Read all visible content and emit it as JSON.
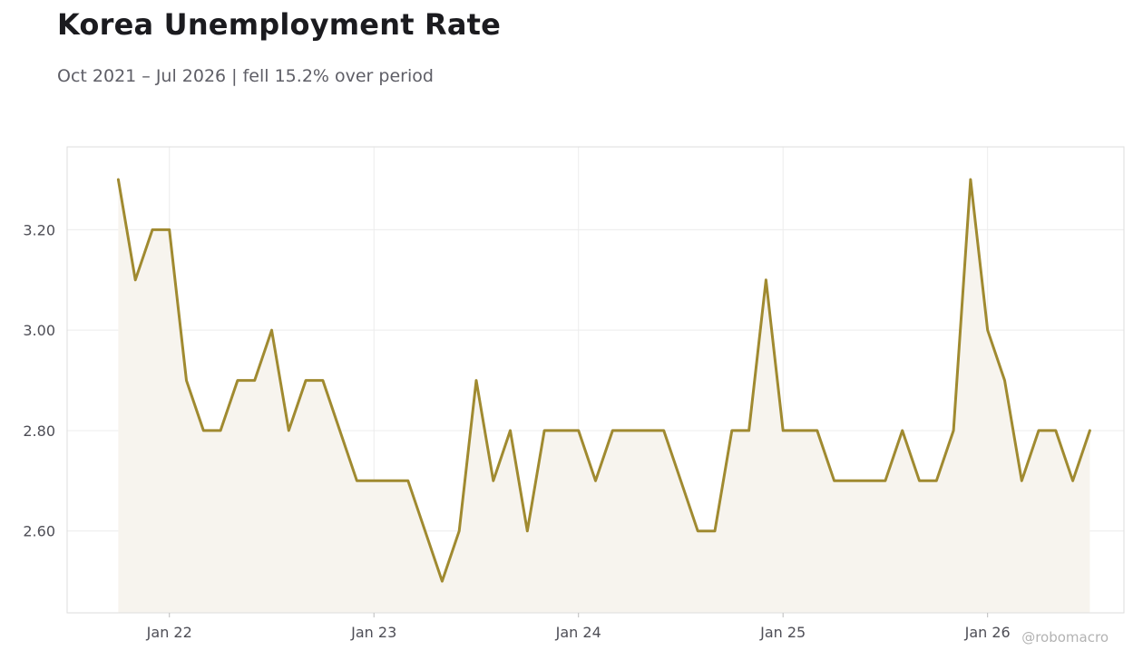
{
  "header": {
    "title": "Korea Unemployment Rate",
    "subtitle": "Oct 2021 – Jul 2026 | fell 15.2% over period"
  },
  "watermark": "@robomacro",
  "chart_data": {
    "type": "area",
    "title": "Korea Unemployment Rate",
    "subtitle": "Oct 2021 – Jul 2026 | fell 15.2% over period",
    "xlabel": "",
    "ylabel": "",
    "x_start": "2021-10",
    "x_end": "2026-07",
    "xlim": [
      "2021-07",
      "2026-09"
    ],
    "ylim": [
      2.437,
      3.365
    ],
    "x_ticks": [
      {
        "date": "2022-01",
        "label": "Jan 22"
      },
      {
        "date": "2023-01",
        "label": "Jan 23"
      },
      {
        "date": "2024-01",
        "label": "Jan 24"
      },
      {
        "date": "2025-01",
        "label": "Jan 25"
      },
      {
        "date": "2026-01",
        "label": "Jan 26"
      }
    ],
    "y_ticks": [
      {
        "value": 2.6,
        "label": "2.60"
      },
      {
        "value": 2.8,
        "label": "2.80"
      },
      {
        "value": 3.0,
        "label": "3.00"
      },
      {
        "value": 3.2,
        "label": "3.20"
      }
    ],
    "grid": true,
    "legend": "none",
    "colors": {
      "line": "#a08a30",
      "fill": "#f7f4ee",
      "grid": "#ececec",
      "frame": "#dedede"
    },
    "series": [
      {
        "color": "#a08a30",
        "x": [
          "2021-10",
          "2021-11",
          "2021-12",
          "2022-01",
          "2022-02",
          "2022-03",
          "2022-04",
          "2022-05",
          "2022-06",
          "2022-07",
          "2022-08",
          "2022-09",
          "2022-10",
          "2022-11",
          "2022-12",
          "2023-01",
          "2023-02",
          "2023-03",
          "2023-04",
          "2023-05",
          "2023-06",
          "2023-07",
          "2023-08",
          "2023-09",
          "2023-10",
          "2023-11",
          "2023-12",
          "2024-01",
          "2024-02",
          "2024-03",
          "2024-04",
          "2024-05",
          "2024-06",
          "2024-07",
          "2024-08",
          "2024-09",
          "2024-10",
          "2024-11",
          "2024-12",
          "2025-01",
          "2025-02",
          "2025-03",
          "2025-04",
          "2025-05",
          "2025-06",
          "2025-07",
          "2025-08",
          "2025-09",
          "2025-10",
          "2025-11",
          "2025-12",
          "2026-01",
          "2026-02",
          "2026-03",
          "2026-04",
          "2026-05",
          "2026-06",
          "2026-07"
        ],
        "values": [
          3.3,
          3.1,
          3.2,
          3.2,
          2.9,
          2.8,
          2.8,
          2.9,
          2.9,
          3.0,
          2.8,
          2.9,
          2.9,
          2.8,
          2.7,
          2.7,
          2.7,
          2.7,
          2.6,
          2.5,
          2.6,
          2.9,
          2.7,
          2.8,
          2.6,
          2.8,
          2.8,
          2.8,
          2.7,
          2.8,
          2.8,
          2.8,
          2.8,
          2.7,
          2.6,
          2.6,
          2.8,
          2.8,
          3.1,
          2.8,
          2.8,
          2.8,
          2.7,
          2.7,
          2.7,
          2.7,
          2.8,
          2.7,
          2.7,
          2.8,
          3.3,
          3.0,
          2.9,
          2.7,
          2.8,
          2.8,
          2.7,
          2.8
        ]
      }
    ]
  }
}
